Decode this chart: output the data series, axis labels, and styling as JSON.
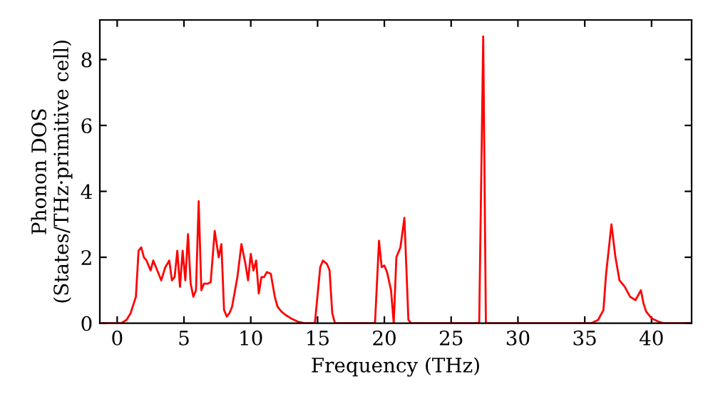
{
  "chart_data": {
    "type": "line",
    "xlabel": "Frequency (THz)",
    "ylabel": "Phonon DOS\n(States/THz·primitive cell)",
    "xlim": [
      -1.3,
      43
    ],
    "ylim": [
      0,
      9.2
    ],
    "xticks": [
      0,
      5,
      10,
      15,
      20,
      25,
      30,
      35,
      40
    ],
    "yticks": [
      0,
      2,
      4,
      6,
      8
    ],
    "grid": false,
    "legend": false,
    "x": [
      -1.3,
      0,
      0.3,
      0.7,
      1.0,
      1.4,
      1.6,
      1.8,
      2.0,
      2.2,
      2.5,
      2.7,
      3.0,
      3.3,
      3.6,
      3.9,
      4.1,
      4.3,
      4.5,
      4.7,
      4.9,
      5.1,
      5.3,
      5.5,
      5.7,
      5.9,
      6.1,
      6.3,
      6.5,
      6.8,
      7.0,
      7.3,
      7.6,
      7.8,
      8.0,
      8.2,
      8.4,
      8.6,
      9.0,
      9.3,
      9.6,
      9.8,
      10.0,
      10.2,
      10.4,
      10.6,
      10.8,
      11.0,
      11.2,
      11.5,
      11.8,
      12.0,
      12.3,
      12.6,
      13.0,
      13.5,
      14.0,
      14.4,
      14.8,
      15.2,
      15.4,
      15.7,
      15.9,
      16.1,
      16.3,
      16.6,
      16.8,
      17.0,
      19.3,
      19.6,
      19.8,
      20.0,
      20.2,
      20.5,
      20.7,
      20.9,
      21.2,
      21.5,
      21.8,
      22.0,
      22.2,
      22.5,
      27.1,
      27.4,
      27.6,
      27.8,
      28.0,
      35.5,
      36.0,
      36.4,
      36.6,
      37.0,
      37.3,
      37.6,
      38.0,
      38.4,
      38.8,
      39.2,
      39.4,
      39.6,
      40.0,
      40.5,
      40.9,
      43
    ],
    "series": [
      {
        "color": "#ff0000",
        "values": [
          0,
          0,
          0,
          0.1,
          0.3,
          0.8,
          2.2,
          2.3,
          2.0,
          1.9,
          1.6,
          1.9,
          1.6,
          1.3,
          1.7,
          1.9,
          1.3,
          1.4,
          2.2,
          1.1,
          2.2,
          1.3,
          2.7,
          1.2,
          0.8,
          1.0,
          3.7,
          1.0,
          1.2,
          1.2,
          1.25,
          2.8,
          2.0,
          2.4,
          0.4,
          0.2,
          0.3,
          0.5,
          1.4,
          2.4,
          1.8,
          1.3,
          2.1,
          1.6,
          1.9,
          0.9,
          1.4,
          1.4,
          1.55,
          1.5,
          0.8,
          0.5,
          0.35,
          0.25,
          0.15,
          0.05,
          0,
          0,
          0,
          1.7,
          1.9,
          1.8,
          1.6,
          0.3,
          0,
          0,
          0,
          0,
          0,
          2.5,
          1.7,
          1.75,
          1.55,
          1.0,
          0,
          2.0,
          2.3,
          3.2,
          0.1,
          0,
          0,
          0,
          0,
          8.7,
          0,
          0,
          0,
          0,
          0.1,
          0.4,
          1.5,
          3.0,
          2.0,
          1.3,
          1.1,
          0.8,
          0.7,
          1.0,
          0.6,
          0.35,
          0.15,
          0.05,
          0,
          0
        ]
      }
    ]
  }
}
